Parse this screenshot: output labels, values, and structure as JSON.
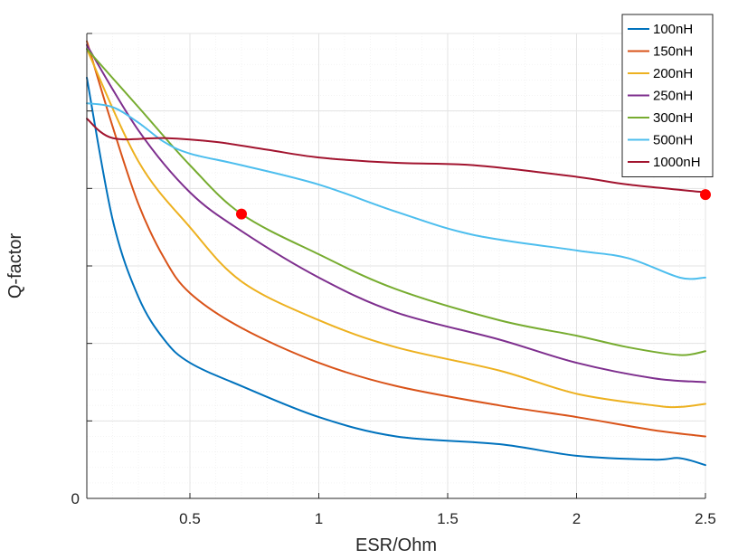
{
  "chart_data": {
    "type": "line",
    "xlabel": "ESR/Ohm",
    "ylabel": "Q-factor",
    "xlim": [
      0.1,
      2.5
    ],
    "ylim": [
      0,
      6
    ],
    "x_ticks": [
      0.5,
      1,
      1.5,
      2,
      2.5
    ],
    "x_tick_labels": [
      "0.5",
      "1",
      "1.5",
      "2",
      "2.5"
    ],
    "y_ticks": [
      0,
      1,
      2,
      3,
      4,
      5,
      6
    ],
    "y_tick_labels": [
      "0",
      "",
      "",
      "",
      "",
      "",
      ""
    ],
    "grid": true,
    "minor_grid": true,
    "legend_position": "top-right",
    "series": [
      {
        "name": "100nH",
        "color": "#0072BD",
        "x": [
          0.1,
          0.2,
          0.3,
          0.4,
          0.5,
          0.7,
          1.0,
          1.3,
          1.7,
          2.0,
          2.3,
          2.4,
          2.5
        ],
        "y": [
          5.43,
          3.6,
          2.6,
          2.05,
          1.75,
          1.45,
          1.05,
          0.8,
          0.7,
          0.55,
          0.5,
          0.52,
          0.43
        ]
      },
      {
        "name": "150nH",
        "color": "#D95319",
        "x": [
          0.1,
          0.2,
          0.3,
          0.4,
          0.5,
          0.7,
          1.0,
          1.3,
          1.7,
          2.0,
          2.3,
          2.5
        ],
        "y": [
          5.9,
          4.8,
          3.8,
          3.1,
          2.65,
          2.2,
          1.75,
          1.45,
          1.2,
          1.05,
          0.88,
          0.8
        ]
      },
      {
        "name": "200nH",
        "color": "#EDB120",
        "x": [
          0.1,
          0.3,
          0.5,
          0.7,
          1.0,
          1.3,
          1.7,
          2.0,
          2.3,
          2.4,
          2.5
        ],
        "y": [
          5.8,
          4.35,
          3.5,
          2.8,
          2.3,
          1.95,
          1.65,
          1.35,
          1.2,
          1.18,
          1.22
        ]
      },
      {
        "name": "250nH",
        "color": "#7E2F8E",
        "x": [
          0.1,
          0.3,
          0.5,
          0.7,
          1.0,
          1.3,
          1.7,
          2.0,
          2.3,
          2.5
        ],
        "y": [
          5.85,
          4.75,
          3.95,
          3.45,
          2.85,
          2.4,
          2.05,
          1.75,
          1.55,
          1.5
        ]
      },
      {
        "name": "300nH",
        "color": "#77AC30",
        "x": [
          0.1,
          0.3,
          0.5,
          0.7,
          1.0,
          1.3,
          1.7,
          2.0,
          2.2,
          2.4,
          2.5
        ],
        "y": [
          5.8,
          5.05,
          4.3,
          3.67,
          3.15,
          2.7,
          2.3,
          2.1,
          1.95,
          1.85,
          1.9
        ]
      },
      {
        "name": "500nH",
        "color": "#4DBEEE",
        "x": [
          0.1,
          0.2,
          0.3,
          0.4,
          0.5,
          0.7,
          1.0,
          1.3,
          1.6,
          2.0,
          2.2,
          2.4,
          2.5
        ],
        "y": [
          5.1,
          5.05,
          4.85,
          4.6,
          4.45,
          4.3,
          4.05,
          3.7,
          3.4,
          3.2,
          3.1,
          2.85,
          2.85
        ]
      },
      {
        "name": "1000nH",
        "color": "#A2142F",
        "x": [
          0.1,
          0.2,
          0.4,
          0.6,
          0.8,
          1.0,
          1.3,
          1.6,
          2.0,
          2.2,
          2.5
        ],
        "y": [
          4.9,
          4.65,
          4.65,
          4.6,
          4.5,
          4.4,
          4.33,
          4.3,
          4.15,
          4.05,
          3.95
        ]
      }
    ],
    "markers": [
      {
        "x": 0.7,
        "y": 3.67,
        "color": "#FF0000"
      },
      {
        "x": 2.5,
        "y": 3.92,
        "color": "#FF0000"
      }
    ]
  }
}
